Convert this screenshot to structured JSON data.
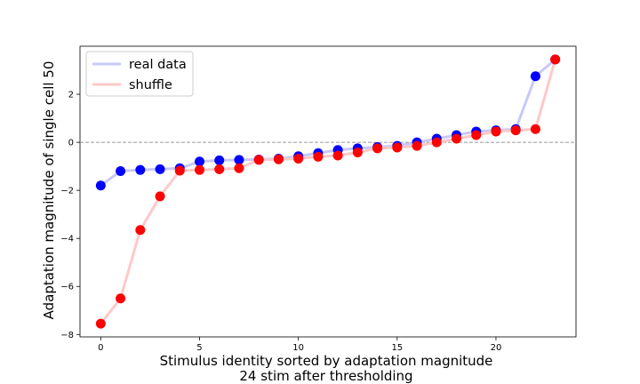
{
  "chart_data": {
    "type": "line",
    "title": "",
    "xlabel_lines": [
      "Stimulus identity sorted by adaptation magnitude",
      "24 stim after thresholding"
    ],
    "ylabel": "Adaptation magnitude of single cell 50",
    "xlim": [
      -1.05,
      24.05
    ],
    "ylim": [
      -8.1,
      4.0
    ],
    "xticks": [
      0,
      5,
      10,
      15,
      20
    ],
    "yticks": [
      -8,
      -6,
      -4,
      -2,
      0,
      2
    ],
    "ytick_labels": [
      "−8",
      "−6",
      "−4",
      "−2",
      "0",
      "2"
    ],
    "reference_line": {
      "y": 0,
      "style": "dashed",
      "color": "#777777"
    },
    "legend_position": "upper-left",
    "grid": false,
    "series": [
      {
        "name": "real data",
        "line_color": "#c8c8f8",
        "marker_color": "#0000ff",
        "x": [
          0,
          1,
          2,
          3,
          4,
          5,
          6,
          7,
          8,
          9,
          10,
          11,
          12,
          13,
          14,
          15,
          16,
          17,
          18,
          19,
          20,
          21,
          22,
          23
        ],
        "values": [
          -1.8,
          -1.2,
          -1.15,
          -1.12,
          -1.08,
          -0.8,
          -0.75,
          -0.73,
          -0.72,
          -0.68,
          -0.58,
          -0.45,
          -0.32,
          -0.25,
          -0.2,
          -0.15,
          0.0,
          0.15,
          0.3,
          0.45,
          0.5,
          0.55,
          2.75,
          3.45
        ]
      },
      {
        "name": "shuffle",
        "line_color": "#ffc8c8",
        "marker_color": "#ff0000",
        "x": [
          0,
          1,
          2,
          3,
          4,
          5,
          6,
          7,
          8,
          9,
          10,
          11,
          12,
          13,
          14,
          15,
          16,
          17,
          18,
          19,
          20,
          21,
          22,
          23
        ],
        "values": [
          -7.55,
          -6.5,
          -3.65,
          -2.25,
          -1.18,
          -1.15,
          -1.12,
          -1.08,
          -0.73,
          -0.71,
          -0.68,
          -0.6,
          -0.55,
          -0.42,
          -0.25,
          -0.22,
          -0.15,
          0.0,
          0.15,
          0.3,
          0.45,
          0.5,
          0.55,
          3.45
        ]
      }
    ]
  }
}
